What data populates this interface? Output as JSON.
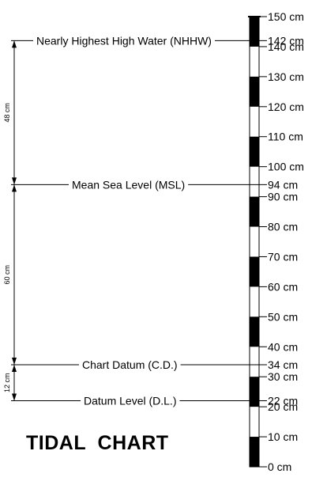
{
  "title": "TIDAL  CHART",
  "colors": {
    "ink": "#000000",
    "background": "#ffffff"
  },
  "staff": {
    "unit": "cm",
    "min": 0,
    "max": 150,
    "block_size": 10,
    "scale_labels": [
      "0 cm",
      "10 cm",
      "20 cm",
      "30 cm",
      "40 cm",
      "50 cm",
      "60 cm",
      "70 cm",
      "80 cm",
      "90 cm",
      "100 cm",
      "110 cm",
      "120 cm",
      "130 cm",
      "140 cm",
      "150 cm"
    ]
  },
  "levels": [
    {
      "name": "Nearly Highest High Water (NHHW)",
      "value": 142,
      "value_label": "142 cm"
    },
    {
      "name": "Mean Sea Level (MSL)",
      "value": 94,
      "value_label": "94 cm"
    },
    {
      "name": "Chart Datum (C.D.)",
      "value": 34,
      "value_label": "34 cm"
    },
    {
      "name": "Datum Level (D.L.)",
      "value": 22,
      "value_label": "22 cm"
    }
  ],
  "intervals": [
    {
      "label": "48 cm",
      "from": 94,
      "to": 142
    },
    {
      "label": "60 cm",
      "from": 34,
      "to": 94
    },
    {
      "label": "12 cm",
      "from": 22,
      "to": 34
    }
  ]
}
